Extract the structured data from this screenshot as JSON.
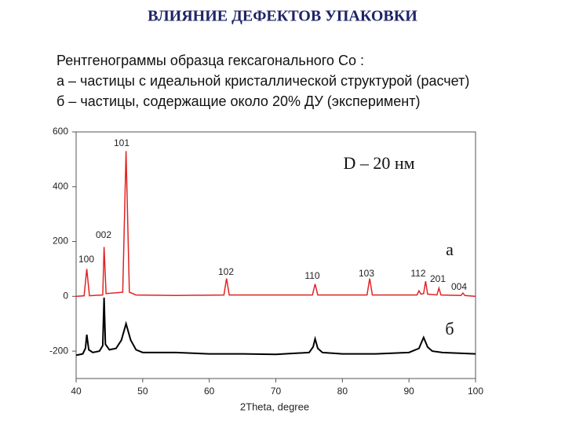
{
  "chart_data": {
    "type": "line",
    "title": "ВЛИЯНИЕ ДЕФЕКТОВ УПАКОВКИ",
    "subtitle": [
      "Рентгенограммы образца гексагонального Co :",
      "а – частицы с идеальной кристаллической структурой (расчет)",
      "б – частицы, содержащие около 20% ДУ (эксперимент)"
    ],
    "xlabel": "2Theta, degree",
    "xlim": [
      40,
      100
    ],
    "xticks": [
      40,
      50,
      60,
      70,
      80,
      90,
      100
    ],
    "ylim": [
      -300,
      600
    ],
    "yticks": [
      -200,
      0,
      200,
      400,
      600
    ],
    "annotations": [
      "100",
      "002",
      "101",
      "102",
      "110",
      "103",
      "112",
      "201",
      "004",
      "D – 20 нм",
      "а",
      "б"
    ],
    "series": [
      {
        "color": "#e02424",
        "x": [
          40,
          41.2,
          41.6,
          42.0,
          44.0,
          44.2,
          44.5,
          47.0,
          47.5,
          48.0,
          49,
          55,
          62.2,
          62.6,
          63.0,
          75.5,
          75.9,
          76.3,
          83.7,
          84.1,
          84.5,
          91.2,
          91.5,
          91.8,
          92.2,
          92.5,
          92.8,
          94.2,
          94.5,
          94.8,
          97.8,
          98.1,
          98.4,
          100
        ],
        "values": [
          0,
          2,
          100,
          2,
          5,
          180,
          10,
          15,
          530,
          15,
          5,
          3,
          5,
          65,
          5,
          5,
          45,
          5,
          5,
          65,
          5,
          5,
          20,
          8,
          10,
          55,
          8,
          5,
          30,
          5,
          3,
          12,
          3,
          0
        ]
      },
      {
        "color": "#000000",
        "x": [
          40,
          41,
          41.4,
          41.6,
          41.9,
          42.5,
          43.5,
          44.0,
          44.2,
          44.4,
          45,
          46,
          46.8,
          47.5,
          48.2,
          49,
          50,
          55,
          60,
          65,
          70,
          75,
          75.6,
          75.9,
          76.3,
          77,
          80,
          85,
          90,
          91.5,
          92.2,
          92.8,
          93.5,
          95,
          100
        ],
        "values": [
          -215,
          -210,
          -190,
          -140,
          -195,
          -205,
          -200,
          -180,
          -5,
          -175,
          -195,
          -190,
          -160,
          -100,
          -160,
          -195,
          -205,
          -205,
          -210,
          -210,
          -212,
          -205,
          -185,
          -155,
          -190,
          -205,
          -210,
          -210,
          -205,
          -190,
          -150,
          -185,
          -200,
          -205,
          -210
        ]
      }
    ]
  }
}
